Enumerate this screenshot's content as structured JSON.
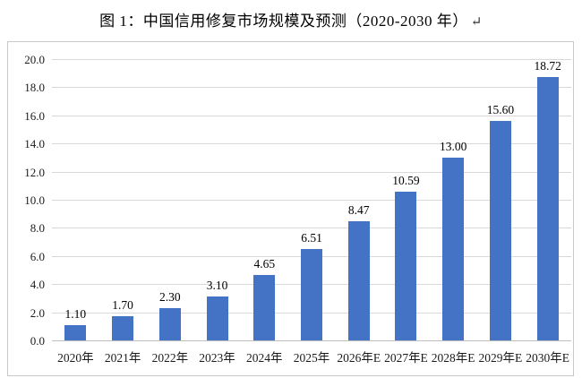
{
  "caption": {
    "text": "图  1：中国信用修复市场规模及预测（2020-2030 年）",
    "paragraph_mark": "↵"
  },
  "chart_data": {
    "type": "bar",
    "title": "中国信用修复市场规模及预测（2020-2030 年）",
    "categories": [
      "2020年",
      "2021年",
      "2022年",
      "2023年",
      "2024年",
      "2025年",
      "2026年E",
      "2027年E",
      "2028年E",
      "2029年E",
      "2030年E"
    ],
    "values": [
      1.1,
      1.7,
      2.3,
      3.1,
      4.65,
      6.51,
      8.47,
      10.59,
      13.0,
      15.6,
      18.72
    ],
    "value_labels": [
      "1.10",
      "1.70",
      "2.30",
      "3.10",
      "4.65",
      "6.51",
      "8.47",
      "10.59",
      "13.00",
      "15.60",
      "18.72"
    ],
    "xlabel": "",
    "ylabel": "",
    "ylim": [
      0,
      20
    ],
    "y_tick_step": 2,
    "y_tick_labels": [
      "0.0",
      "2.0",
      "4.0",
      "6.0",
      "8.0",
      "10.0",
      "12.0",
      "14.0",
      "16.0",
      "18.0",
      "20.0"
    ],
    "grid": true,
    "legend": "none",
    "colors": {
      "bar": "#4472C4",
      "gridline": "#D9D9D9",
      "axis_line": "#BFBFBF",
      "frame_border": "#C8C8C8",
      "text": "#000000"
    }
  }
}
